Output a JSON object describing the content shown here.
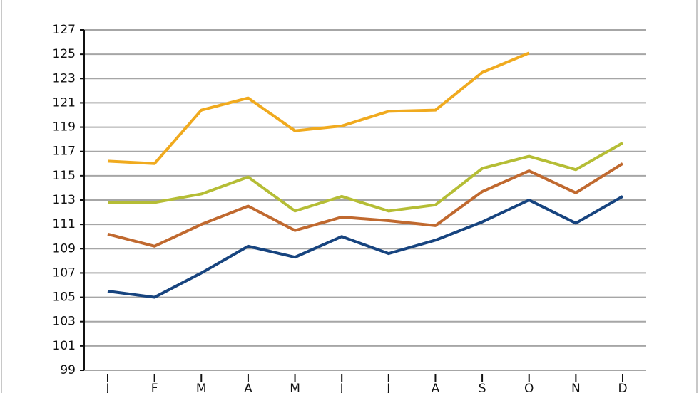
{
  "chart_data": {
    "type": "line",
    "categories": [
      "J",
      "F",
      "M",
      "A",
      "M",
      "J",
      "J",
      "A",
      "S",
      "O",
      "N",
      "D"
    ],
    "series": [
      {
        "color": "#f0aa1e",
        "values": [
          116.2,
          116.0,
          120.4,
          121.4,
          118.7,
          119.1,
          120.3,
          120.4,
          123.5,
          125.1,
          null,
          null
        ]
      },
      {
        "color": "#b5bd35",
        "values": [
          112.8,
          112.8,
          113.5,
          114.9,
          112.1,
          113.3,
          112.1,
          112.6,
          115.6,
          116.6,
          115.5,
          117.7
        ]
      },
      {
        "color": "#c0692f",
        "values": [
          110.2,
          109.2,
          111.0,
          112.5,
          110.5,
          111.6,
          111.3,
          110.9,
          113.7,
          115.4,
          113.6,
          116.0
        ]
      },
      {
        "color": "#17447f",
        "values": [
          105.5,
          105.0,
          107.0,
          109.2,
          108.3,
          110.0,
          108.6,
          109.7,
          111.2,
          113.0,
          111.1,
          113.3
        ]
      }
    ],
    "ylim": [
      99,
      127
    ],
    "yticks": [
      99,
      101,
      103,
      105,
      107,
      109,
      111,
      113,
      115,
      117,
      119,
      121,
      123,
      125,
      127
    ],
    "grid": true
  }
}
